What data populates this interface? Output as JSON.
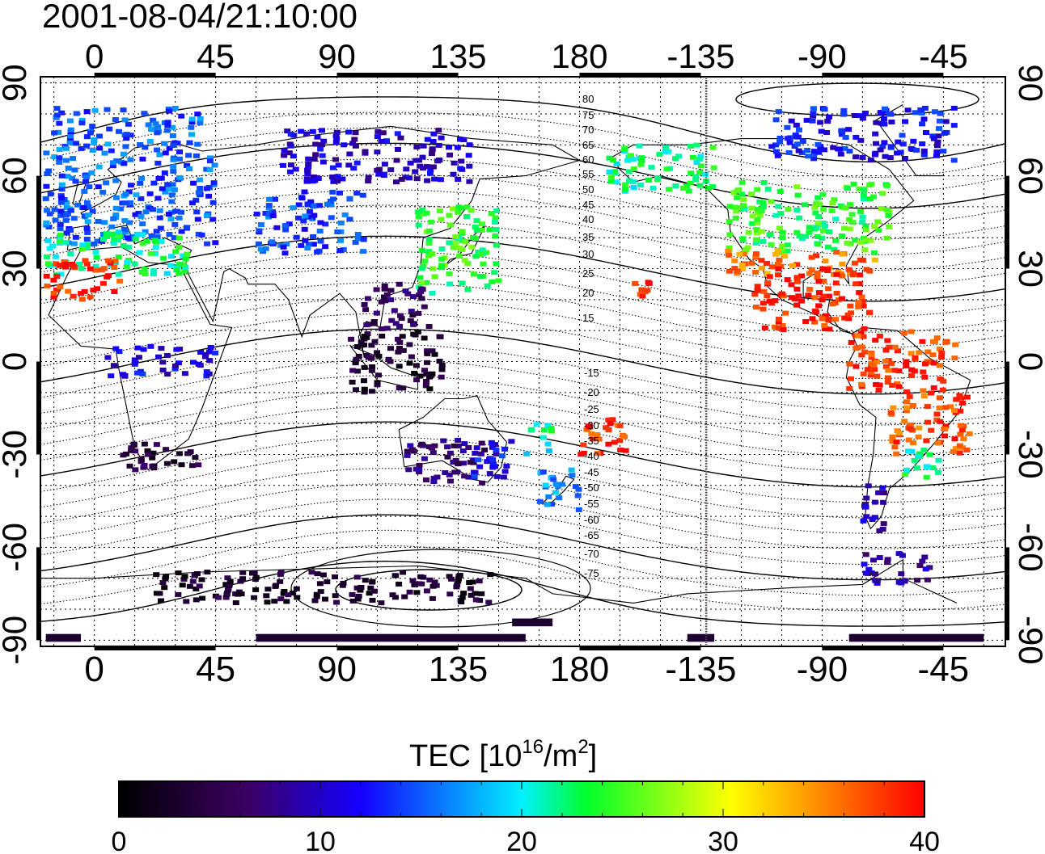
{
  "timestamp": "2001-08-04/21:10:00",
  "map": {
    "x_ticks_top": [
      "0",
      "45",
      "90",
      "135",
      "180",
      "-135",
      "-90",
      "-45"
    ],
    "x_ticks_bottom": [
      "0",
      "45",
      "90",
      "135",
      "180",
      "-135",
      "-90",
      "-45"
    ],
    "y_ticks": [
      "90",
      "60",
      "30",
      "0",
      "-30",
      "-60",
      "-90"
    ],
    "lon_range": [
      -20,
      338
    ],
    "lat_range": [
      -92,
      92
    ],
    "terminator_lon": -133,
    "contour_labels_north": [
      "80",
      "75",
      "70",
      "65",
      "60",
      "55",
      "50",
      "45",
      "40",
      "35",
      "30",
      "25",
      "20",
      "15"
    ],
    "contour_labels_south": [
      "-15",
      "-20",
      "-25",
      "-30",
      "-35",
      "-40",
      "-45",
      "-50",
      "-55",
      "-60",
      "-65",
      "-70",
      "-75"
    ],
    "terminator_color": "#dd0000"
  },
  "colorbar": {
    "title_main": "TEC  [10",
    "title_exp1": "16",
    "title_mid": "/m",
    "title_exp2": "2",
    "title_end": "]",
    "tick_labels": [
      "0",
      "10",
      "20",
      "30",
      "40"
    ],
    "range": [
      0,
      40
    ],
    "colors": [
      "#000000",
      "#3c0064",
      "#1400ff",
      "#00f0ff",
      "#00ff2c",
      "#ffff00",
      "#ff0000"
    ]
  },
  "tec_regions": [
    {
      "name": "europe",
      "lon": [
        -18,
        45
      ],
      "lat": [
        38,
        68
      ],
      "tec": 15
    },
    {
      "name": "europe-south",
      "lon": [
        -18,
        35
      ],
      "lat": [
        28,
        42
      ],
      "tec": 22
    },
    {
      "name": "iberia-africa-north",
      "lon": [
        -18,
        10
      ],
      "lat": [
        20,
        33
      ],
      "tec": 39
    },
    {
      "name": "scandinavia",
      "lon": [
        -15,
        40
      ],
      "lat": [
        68,
        82
      ],
      "tec": 15
    },
    {
      "name": "central-asia",
      "lon": [
        60,
        100
      ],
      "lat": [
        35,
        55
      ],
      "tec": 14
    },
    {
      "name": "siberia",
      "lon": [
        70,
        140
      ],
      "lat": [
        58,
        75
      ],
      "tec": 10
    },
    {
      "name": "japan-china",
      "lon": [
        120,
        150
      ],
      "lat": [
        22,
        50
      ],
      "tec": 24
    },
    {
      "name": "indonesia",
      "lon": [
        95,
        130
      ],
      "lat": [
        -10,
        10
      ],
      "tec": 3
    },
    {
      "name": "southeast-asia",
      "lon": [
        100,
        125
      ],
      "lat": [
        10,
        25
      ],
      "tec": 6
    },
    {
      "name": "australia-south",
      "lon": [
        115,
        150
      ],
      "lat": [
        -40,
        -25
      ],
      "tec": 7
    },
    {
      "name": "australia-east",
      "lon": [
        140,
        155
      ],
      "lat": [
        -38,
        -25
      ],
      "tec": 12
    },
    {
      "name": "new-zealand",
      "lon": [
        165,
        180
      ],
      "lat": [
        -48,
        -35
      ],
      "tec": 17
    },
    {
      "name": "pacific-islands",
      "lon": [
        160,
        170
      ],
      "lat": [
        -30,
        -20
      ],
      "tec": 21
    },
    {
      "name": "hawaii",
      "lon": [
        -160,
        -152
      ],
      "lat": [
        18,
        26
      ],
      "tec": 39
    },
    {
      "name": "south-pacific",
      "lon": [
        -180,
        -160
      ],
      "lat": [
        -30,
        -18
      ],
      "tec": 38
    },
    {
      "name": "alaska",
      "lon": [
        -170,
        -130
      ],
      "lat": [
        55,
        70
      ],
      "tec": 22
    },
    {
      "name": "north-america",
      "lon": [
        -125,
        -65
      ],
      "lat": [
        35,
        58
      ],
      "tec": 24
    },
    {
      "name": "north-america-south",
      "lon": [
        -125,
        -70
      ],
      "lat": [
        28,
        36
      ],
      "tec": 36
    },
    {
      "name": "central-america",
      "lon": [
        -115,
        -70
      ],
      "lat": [
        10,
        30
      ],
      "tec": 39
    },
    {
      "name": "south-america-north",
      "lon": [
        -80,
        -40
      ],
      "lat": [
        -10,
        10
      ],
      "tec": 38
    },
    {
      "name": "brazil",
      "lon": [
        -65,
        -35
      ],
      "lat": [
        -30,
        -10
      ],
      "tec": 37
    },
    {
      "name": "brazil-south",
      "lon": [
        -60,
        -45
      ],
      "lat": [
        -38,
        -28
      ],
      "tec": 22
    },
    {
      "name": "patagonia",
      "lon": [
        -75,
        -65
      ],
      "lat": [
        -55,
        -40
      ],
      "tec": 10
    },
    {
      "name": "antarctic-peninsula",
      "lon": [
        -75,
        -50
      ],
      "lat": [
        -72,
        -62
      ],
      "tec": 9
    },
    {
      "name": "antarctica-east",
      "lon": [
        20,
        150
      ],
      "lat": [
        -78,
        -68
      ],
      "tec": 3
    },
    {
      "name": "greenland-canada",
      "lon": [
        -110,
        -40
      ],
      "lat": [
        65,
        82
      ],
      "tec": 12
    },
    {
      "name": "south-africa",
      "lon": [
        10,
        40
      ],
      "lat": [
        -35,
        -25
      ],
      "tec": 4
    },
    {
      "name": "africa-equator",
      "lon": [
        5,
        45
      ],
      "lat": [
        -5,
        5
      ],
      "tec": 11
    }
  ],
  "antarctic_band": [
    {
      "lon": [
        -18,
        -5
      ],
      "lat": [
        -90,
        -88
      ]
    },
    {
      "lon": [
        60,
        160
      ],
      "lat": [
        -90,
        -88
      ]
    },
    {
      "lon": [
        155,
        170
      ],
      "lat": [
        -85,
        -83
      ]
    },
    {
      "lon": [
        -130,
        -140
      ],
      "lat": [
        -90,
        -88
      ]
    },
    {
      "lon": [
        -80,
        -30
      ],
      "lat": [
        -90,
        -88
      ]
    }
  ]
}
